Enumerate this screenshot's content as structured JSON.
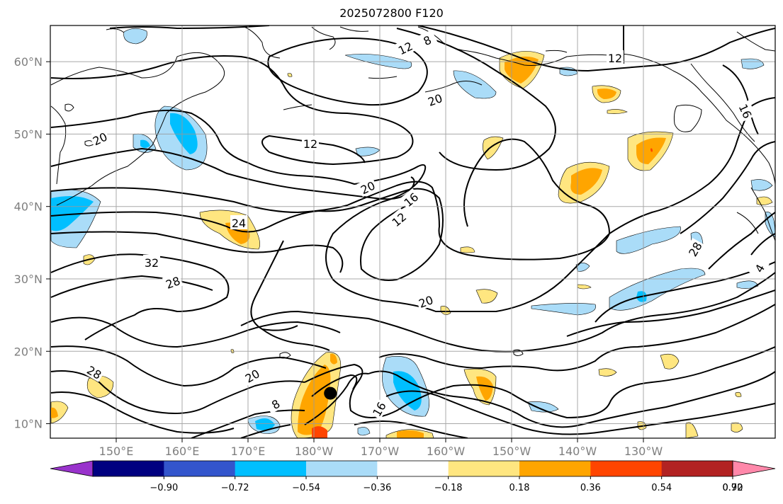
{
  "title": "2025072800 F120",
  "map": {
    "lat_labels": [
      "60°N",
      "50°N",
      "40°N",
      "30°N",
      "20°N",
      "10°N"
    ],
    "lon_labels": [
      "150°E",
      "160°E",
      "170°E",
      "180°W",
      "170°W",
      "160°W",
      "150°W",
      "140°W",
      "130°W"
    ],
    "lat_range": [
      8,
      65
    ],
    "lon_range": [
      140,
      250
    ],
    "gridlines": true,
    "storm_marker": {
      "lon": 182.5,
      "lat": 14.2
    }
  },
  "contours": {
    "color": "#000000",
    "labels": [
      "8",
      "12",
      "12",
      "20",
      "16",
      "20",
      "12",
      "20",
      "16",
      "12",
      "24",
      "32",
      "28",
      "20",
      "28",
      "20",
      "16",
      "8",
      "28",
      "4"
    ]
  },
  "colorbar": {
    "colors": [
      "#9933cc",
      "#000080",
      "#3355cc",
      "#00bfff",
      "#aadcf8",
      "#ffffff",
      "#ffe680",
      "#ffa500",
      "#ff4500",
      "#b22222",
      "#ff88aa"
    ],
    "tick_labels": [
      "−0.90",
      "−0.72",
      "−0.54",
      "−0.36",
      "−0.18",
      "0.18",
      "0.36",
      "0.54",
      "0.72",
      "0.90"
    ]
  }
}
